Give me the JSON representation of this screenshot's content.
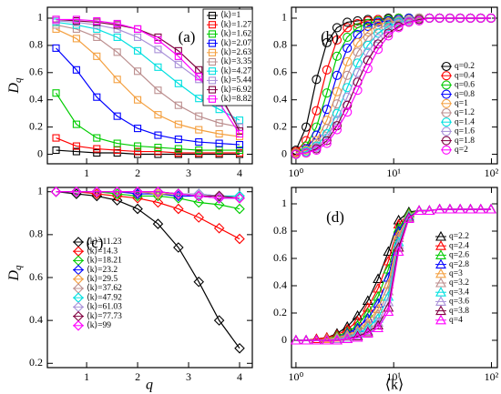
{
  "chart_data": [
    {
      "type": "line",
      "annotation": "(a)",
      "ylabel": "D",
      "ylabel_sub": "q",
      "marker": "square",
      "legend": "upper right",
      "legend_frame": true,
      "x": [
        0.4,
        0.8,
        1.2,
        1.6,
        2,
        2.4,
        2.8,
        3.2,
        3.6,
        4
      ],
      "xlim": [
        0.23,
        4.25
      ],
      "xticks": [
        1,
        2,
        3,
        4
      ],
      "ylim": [
        -0.07,
        1.08
      ],
      "yticks": [
        0,
        0.2,
        0.4,
        0.6,
        0.8,
        1
      ],
      "series": [
        {
          "name": "⟨k⟩=1",
          "color": "#000000",
          "values": [
            0.03,
            0.02,
            0.01,
            0.01,
            0,
            0,
            0,
            0,
            0,
            0
          ]
        },
        {
          "name": "⟨k⟩=1.27",
          "color": "#ff0000",
          "values": [
            0.12,
            0.06,
            0.04,
            0.03,
            0.02,
            0.02,
            0.01,
            0.01,
            0.01,
            0.01
          ]
        },
        {
          "name": "⟨k⟩=1.62",
          "color": "#00cc00",
          "values": [
            0.45,
            0.22,
            0.12,
            0.08,
            0.06,
            0.05,
            0.04,
            0.03,
            0.03,
            0.03
          ]
        },
        {
          "name": "⟨k⟩=2.07",
          "color": "#0000ff",
          "values": [
            0.78,
            0.62,
            0.42,
            0.28,
            0.19,
            0.14,
            0.11,
            0.09,
            0.08,
            0.07
          ]
        },
        {
          "name": "⟨k⟩=2.63",
          "color": "#f4a040",
          "values": [
            0.92,
            0.85,
            0.72,
            0.55,
            0.4,
            0.29,
            0.22,
            0.18,
            0.15,
            0.13
          ]
        },
        {
          "name": "⟨k⟩=3.35",
          "color": "#bc8f8f",
          "values": [
            0.95,
            0.92,
            0.86,
            0.75,
            0.61,
            0.47,
            0.36,
            0.28,
            0.23,
            0.2
          ]
        },
        {
          "name": "⟨k⟩=4.27",
          "color": "#00e0e0",
          "values": [
            0.97,
            0.95,
            0.92,
            0.86,
            0.76,
            0.64,
            0.52,
            0.41,
            0.33,
            0.25
          ]
        },
        {
          "name": "⟨k⟩=5.44",
          "color": "#a890d8",
          "values": [
            0.98,
            0.97,
            0.95,
            0.92,
            0.86,
            0.77,
            0.66,
            0.55,
            0.42,
            0.2
          ]
        },
        {
          "name": "⟨k⟩=6.92",
          "color": "#800040",
          "values": [
            0.99,
            0.98,
            0.97,
            0.95,
            0.92,
            0.86,
            0.76,
            0.62,
            0.45,
            0.17
          ]
        },
        {
          "name": "⟨k⟩=8.82",
          "color": "#ff00ff",
          "values": [
            0.99,
            0.99,
            0.98,
            0.96,
            0.92,
            0.84,
            0.72,
            0.57,
            0.38,
            0.15
          ]
        }
      ]
    },
    {
      "type": "line",
      "annotation": "(b)",
      "marker": "circle",
      "legend": "center right",
      "xscale": "log",
      "x": [
        1,
        1.27,
        1.62,
        2.07,
        2.63,
        3.35,
        4.27,
        5.44,
        6.92,
        8.82,
        11.23,
        14.3,
        18.21,
        23.2,
        29.5,
        37.62,
        47.92,
        61.03,
        77.73,
        99
      ],
      "xlim": [
        0.9,
        115
      ],
      "xticks": [
        {
          "value": 1,
          "label": "10⁰"
        },
        {
          "value": 10,
          "label": "10¹"
        },
        {
          "value": 100,
          "label": "10²"
        }
      ],
      "ylim": [
        -0.07,
        1.08
      ],
      "yticks": [
        0,
        0.2,
        0.4,
        0.6,
        0.8,
        1
      ],
      "series": [
        {
          "name": "q=0.2",
          "color": "#000000",
          "values": [
            0.03,
            0.2,
            0.55,
            0.82,
            0.93,
            0.97,
            0.98,
            0.99,
            0.99,
            1,
            1,
            1,
            1,
            1,
            1,
            1,
            1,
            1,
            1,
            1
          ]
        },
        {
          "name": "q=0.4",
          "color": "#ff0000",
          "values": [
            0.02,
            0.1,
            0.32,
            0.62,
            0.84,
            0.93,
            0.96,
            0.98,
            0.99,
            0.99,
            1,
            1,
            1,
            1,
            1,
            1,
            1,
            1,
            1,
            1
          ]
        },
        {
          "name": "q=0.6",
          "color": "#00cc00",
          "values": [
            0.01,
            0.06,
            0.2,
            0.45,
            0.72,
            0.86,
            0.93,
            0.96,
            0.98,
            0.99,
            1,
            1,
            1,
            1,
            1,
            1,
            1,
            1,
            1,
            1
          ]
        },
        {
          "name": "q=0.8",
          "color": "#0000ff",
          "values": [
            0.01,
            0.04,
            0.14,
            0.33,
            0.58,
            0.78,
            0.88,
            0.94,
            0.97,
            0.98,
            0.99,
            1,
            1,
            1,
            1,
            1,
            1,
            1,
            1,
            1
          ]
        },
        {
          "name": "q=1",
          "color": "#f4a040",
          "values": [
            0.01,
            0.03,
            0.1,
            0.25,
            0.46,
            0.68,
            0.82,
            0.9,
            0.95,
            0.97,
            0.98,
            0.99,
            1,
            1,
            1,
            1,
            1,
            1,
            1,
            1
          ]
        },
        {
          "name": "q=1.2",
          "color": "#bc8f8f",
          "values": [
            0,
            0.02,
            0.08,
            0.19,
            0.37,
            0.58,
            0.75,
            0.86,
            0.92,
            0.96,
            0.98,
            0.99,
            1,
            1,
            1,
            1,
            1,
            1,
            1,
            1
          ]
        },
        {
          "name": "q=1.4",
          "color": "#00e0e0",
          "values": [
            0,
            0.02,
            0.06,
            0.15,
            0.3,
            0.49,
            0.67,
            0.8,
            0.89,
            0.94,
            0.97,
            0.98,
            0.99,
            1,
            1,
            1,
            1,
            1,
            1,
            1
          ]
        },
        {
          "name": "q=1.6",
          "color": "#a890d8",
          "values": [
            0,
            0.01,
            0.05,
            0.12,
            0.25,
            0.42,
            0.6,
            0.75,
            0.85,
            0.92,
            0.96,
            0.98,
            0.99,
            1,
            1,
            1,
            1,
            1,
            1,
            1
          ]
        },
        {
          "name": "q=1.8",
          "color": "#800040",
          "values": [
            0,
            0.01,
            0.04,
            0.1,
            0.21,
            0.36,
            0.53,
            0.69,
            0.81,
            0.89,
            0.94,
            0.97,
            0.99,
            1,
            1,
            1,
            1,
            1,
            1,
            1
          ]
        },
        {
          "name": "q=2",
          "color": "#ff00ff",
          "values": [
            0,
            0.01,
            0.03,
            0.08,
            0.18,
            0.31,
            0.47,
            0.63,
            0.77,
            0.87,
            0.93,
            0.97,
            0.98,
            1,
            1,
            1,
            1,
            1,
            1,
            1
          ]
        }
      ]
    },
    {
      "type": "line",
      "annotation": "(c)",
      "ylabel": "D",
      "ylabel_sub": "q",
      "xlabel": "q",
      "marker": "diamond",
      "legend": "lower left",
      "x": [
        0.4,
        0.8,
        1.2,
        1.6,
        2,
        2.4,
        2.8,
        3.2,
        3.6,
        4
      ],
      "xlim": [
        0.23,
        4.25
      ],
      "xticks": [
        1,
        2,
        3,
        4
      ],
      "ylim": [
        0.18,
        1.02
      ],
      "yticks": [
        0.2,
        0.4,
        0.6,
        0.8,
        1
      ],
      "series": [
        {
          "name": "⟨k⟩=11.23",
          "color": "#000000",
          "values": [
            1,
            0.99,
            0.98,
            0.96,
            0.92,
            0.85,
            0.74,
            0.58,
            0.4,
            0.27
          ]
        },
        {
          "name": "⟨k⟩=14.3",
          "color": "#ff0000",
          "values": [
            1,
            1,
            0.99,
            0.98,
            0.97,
            0.95,
            0.92,
            0.88,
            0.83,
            0.78
          ]
        },
        {
          "name": "⟨k⟩=18.21",
          "color": "#00cc00",
          "values": [
            1,
            1,
            1,
            0.99,
            0.98,
            0.98,
            0.97,
            0.95,
            0.94,
            0.92
          ]
        },
        {
          "name": "⟨k⟩=23.2",
          "color": "#0000ff",
          "values": [
            1,
            1,
            1,
            1,
            0.99,
            0.99,
            0.98,
            0.98,
            0.97,
            0.97
          ]
        },
        {
          "name": "⟨k⟩=29.5",
          "color": "#f4a040",
          "values": [
            1,
            1,
            1,
            1,
            1,
            0.99,
            0.99,
            0.98,
            0.98,
            0.97
          ]
        },
        {
          "name": "⟨k⟩=37.62",
          "color": "#bc8f8f",
          "values": [
            1,
            1,
            1,
            1,
            1,
            1,
            0.99,
            0.99,
            0.98,
            0.98
          ]
        },
        {
          "name": "⟨k⟩=47.92",
          "color": "#00e0e0",
          "values": [
            1,
            1,
            1,
            1,
            1,
            1,
            0.99,
            0.99,
            0.98,
            0.98
          ]
        },
        {
          "name": "⟨k⟩=61.03",
          "color": "#a890d8",
          "values": [
            1,
            1,
            1,
            1,
            1,
            1,
            0.99,
            0.99,
            0.98,
            0.97
          ]
        },
        {
          "name": "⟨k⟩=77.73",
          "color": "#800040",
          "values": [
            1,
            1,
            1,
            1,
            1,
            1,
            0.99,
            0.98,
            0.98,
            0.97
          ]
        },
        {
          "name": "⟨k⟩=99",
          "color": "#ff00ff",
          "values": [
            1,
            1,
            1,
            1,
            1,
            1,
            0.99,
            0.98,
            0.97,
            0.97
          ]
        }
      ]
    },
    {
      "type": "line",
      "annotation": "(d)",
      "xlabel": "⟨k⟩",
      "marker": "triangle",
      "legend": "lower right",
      "xscale": "log",
      "x": [
        1,
        1.27,
        1.62,
        2.07,
        2.63,
        3.35,
        4.27,
        5.44,
        6.92,
        8.82,
        11.23,
        14.3,
        18.21,
        23.2,
        29.5,
        37.62,
        47.92,
        61.03,
        77.73,
        99
      ],
      "xlim": [
        0.9,
        115
      ],
      "xticks": [
        {
          "value": 1,
          "label": "10⁰"
        },
        {
          "value": 10,
          "label": "10¹"
        },
        {
          "value": 100,
          "label": "10²"
        }
      ],
      "ylim": [
        -0.2,
        1.12
      ],
      "yticks": [
        0,
        0.2,
        0.4,
        0.6,
        0.8,
        1
      ],
      "series": [
        {
          "name": "q=2.2",
          "color": "#000000",
          "values": [
            0,
            0,
            0.01,
            0.02,
            0.05,
            0.1,
            0.18,
            0.29,
            0.45,
            0.65,
            0.88,
            0.94,
            0.95,
            0.95,
            0.96,
            0.96,
            0.96,
            0.96,
            0.96,
            0.96
          ]
        },
        {
          "name": "q=2.4",
          "color": "#ff0000",
          "values": [
            0,
            0,
            0.01,
            0.02,
            0.04,
            0.08,
            0.14,
            0.24,
            0.38,
            0.58,
            0.85,
            0.93,
            0.95,
            0.95,
            0.96,
            0.96,
            0.96,
            0.96,
            0.96,
            0.96
          ]
        },
        {
          "name": "q=2.6",
          "color": "#00cc00",
          "values": [
            0,
            0,
            0,
            0.01,
            0.03,
            0.06,
            0.11,
            0.2,
            0.32,
            0.52,
            0.82,
            0.93,
            0.95,
            0.95,
            0.96,
            0.96,
            0.96,
            0.96,
            0.96,
            0.96
          ]
        },
        {
          "name": "q=2.8",
          "color": "#0000ff",
          "values": [
            0,
            0,
            0,
            0.01,
            0.02,
            0.05,
            0.09,
            0.16,
            0.27,
            0.46,
            0.8,
            0.92,
            0.95,
            0.95,
            0.96,
            0.96,
            0.96,
            0.96,
            0.96,
            0.96
          ]
        },
        {
          "name": "q=3",
          "color": "#f4a040",
          "values": [
            0,
            0,
            0,
            0.01,
            0.02,
            0.04,
            0.07,
            0.13,
            0.23,
            0.41,
            0.77,
            0.92,
            0.95,
            0.95,
            0.96,
            0.96,
            0.96,
            0.96,
            0.96,
            0.96
          ]
        },
        {
          "name": "q=3.2",
          "color": "#bc8f8f",
          "values": [
            0,
            0,
            0,
            0,
            0.01,
            0.03,
            0.06,
            0.11,
            0.19,
            0.36,
            0.75,
            0.91,
            0.95,
            0.95,
            0.96,
            0.96,
            0.96,
            0.96,
            0.96,
            0.96
          ]
        },
        {
          "name": "q=3.4",
          "color": "#00e0e0",
          "values": [
            0,
            0,
            0,
            0,
            0.01,
            0.02,
            0.05,
            0.09,
            0.16,
            0.32,
            0.72,
            0.91,
            0.95,
            0.95,
            0.96,
            0.96,
            0.96,
            0.96,
            0.96,
            0.96
          ]
        },
        {
          "name": "q=3.6",
          "color": "#a890d8",
          "values": [
            0,
            0,
            0,
            0,
            0.01,
            0.02,
            0.04,
            0.07,
            0.13,
            0.28,
            0.7,
            0.9,
            0.95,
            0.95,
            0.96,
            0.96,
            0.96,
            0.96,
            0.96,
            0.96
          ]
        },
        {
          "name": "q=3.8",
          "color": "#800040",
          "values": [
            0,
            0,
            0,
            0,
            0,
            0.01,
            0.03,
            0.06,
            0.11,
            0.24,
            0.68,
            0.9,
            0.95,
            0.95,
            0.96,
            0.96,
            0.96,
            0.96,
            0.96,
            0.96
          ]
        },
        {
          "name": "q=4",
          "color": "#ff00ff",
          "values": [
            0,
            0,
            0,
            0,
            0,
            0.01,
            0.02,
            0.05,
            0.09,
            0.21,
            0.65,
            0.89,
            0.95,
            0.95,
            0.96,
            0.96,
            0.96,
            0.96,
            0.96,
            0.96
          ]
        }
      ]
    }
  ]
}
